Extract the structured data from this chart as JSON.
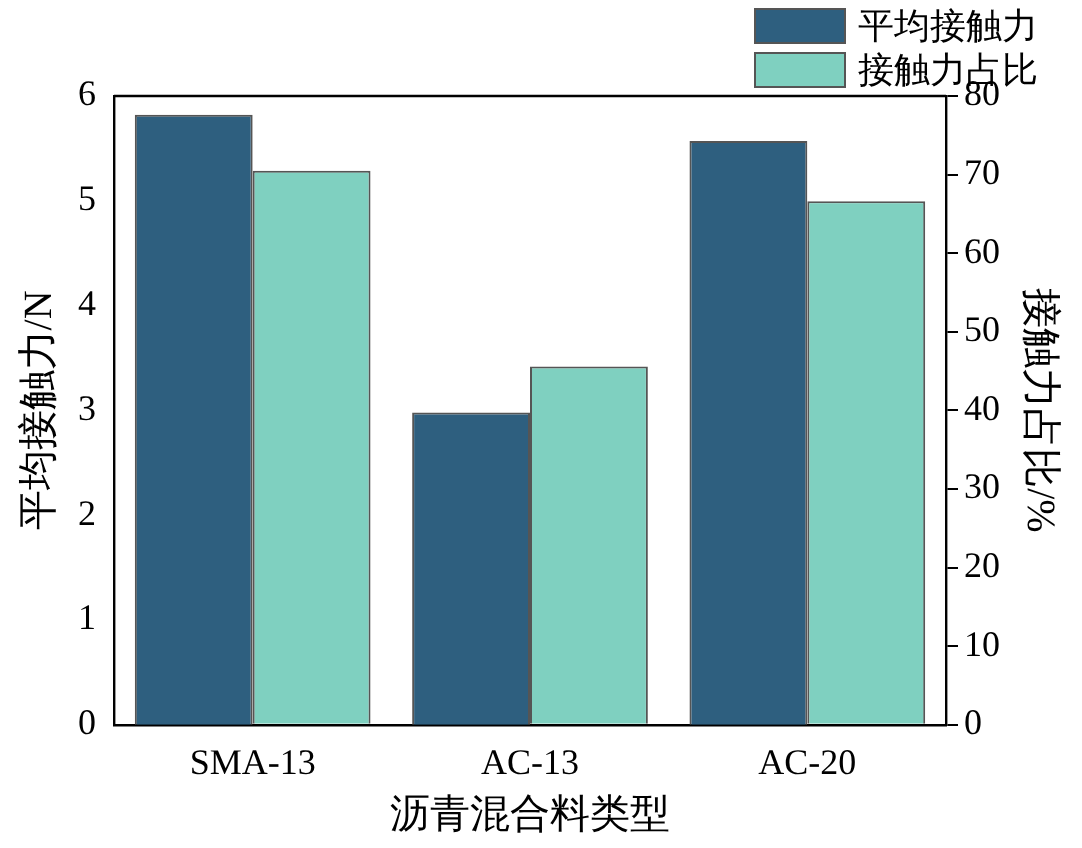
{
  "chart_data": {
    "type": "bar",
    "xlabel": "沥青混合料类型",
    "ylabel": "平均接触力/N",
    "y2label": "接触力占比/%",
    "categories": [
      "SMA-13",
      "AC-13",
      "AC-20"
    ],
    "series": [
      {
        "name": "平均接触力",
        "color": "#2e5f7f",
        "values": [
          5.82,
          2.98,
          5.57
        ]
      },
      {
        "name": "接触力占比",
        "color": "#7fd0c0",
        "values": [
          70.5,
          45.6,
          66.6
        ],
        "axis": "y2"
      }
    ],
    "ylim": [
      0,
      6
    ],
    "yticks": [
      0,
      1,
      2,
      3,
      4,
      5,
      6
    ],
    "y2lim": [
      0,
      80
    ],
    "y2ticks": [
      0,
      10,
      20,
      30,
      40,
      50,
      60,
      70,
      80
    ],
    "legend": "top right",
    "grid": false
  }
}
